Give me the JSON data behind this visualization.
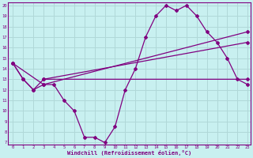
{
  "xlabel": "Windchill (Refroidissement éolien,°C)",
  "bg_color": "#c8f0f0",
  "line_color": "#800080",
  "grid_color": "#b0d8d8",
  "line1_x": [
    0,
    1,
    2,
    3,
    4,
    5,
    6,
    7,
    8,
    9,
    10,
    11,
    12,
    13,
    14,
    15,
    16,
    17,
    18,
    19,
    20,
    21,
    22,
    23
  ],
  "line1_y": [
    14.5,
    13.0,
    12.0,
    12.5,
    12.5,
    11.0,
    10.0,
    7.5,
    7.5,
    7.0,
    8.5,
    12.0,
    14.0,
    17.0,
    19.0,
    20.0,
    19.5,
    20.0,
    19.0,
    17.5,
    16.5,
    15.0,
    13.0,
    12.5
  ],
  "line2_x": [
    0,
    1,
    2,
    3,
    23
  ],
  "line2_y": [
    14.5,
    13.0,
    12.0,
    13.0,
    13.0
  ],
  "line3_x": [
    0,
    3,
    23
  ],
  "line3_y": [
    14.5,
    12.5,
    17.5
  ],
  "line4_x": [
    3,
    23
  ],
  "line4_y": [
    13.0,
    16.5
  ],
  "ylim": [
    7,
    20
  ],
  "xlim": [
    -0.5,
    23.3
  ],
  "yticks": [
    7,
    8,
    9,
    10,
    11,
    12,
    13,
    14,
    15,
    16,
    17,
    18,
    19,
    20
  ],
  "xticks": [
    0,
    1,
    2,
    3,
    4,
    5,
    6,
    7,
    8,
    9,
    10,
    11,
    12,
    13,
    14,
    15,
    16,
    17,
    18,
    19,
    20,
    21,
    22,
    23
  ]
}
